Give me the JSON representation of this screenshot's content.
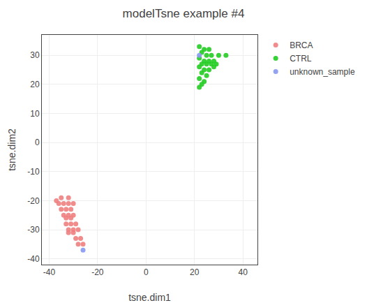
{
  "chart_data": {
    "type": "scatter",
    "title": "modelTsne example #4",
    "xlabel": "tsne.dim1",
    "ylabel": "tsne.dim2",
    "xlim": [
      -43,
      46
    ],
    "ylim": [
      -42,
      37
    ],
    "xticks": [
      -40,
      -20,
      0,
      20,
      40
    ],
    "yticks": [
      -40,
      -30,
      -20,
      -10,
      0,
      10,
      20,
      30
    ],
    "grid": true,
    "legend": "upper right",
    "marker": "circle",
    "series": [
      {
        "name": "BRCA",
        "color": "#f08080",
        "x": [
          -37,
          -35,
          -32,
          -36,
          -34,
          -32,
          -30,
          -35,
          -33,
          -31,
          -34,
          -32,
          -30,
          -33,
          -31,
          -33,
          -31,
          -29,
          -32,
          -30,
          -32,
          -30,
          -28,
          -29,
          -27,
          -28,
          -26
        ],
        "values": [
          -20,
          -19,
          -19,
          -21,
          -21,
          -21,
          -21,
          -23,
          -23,
          -23,
          -25,
          -25,
          -25,
          -26,
          -26,
          -28,
          -28,
          -28,
          -30,
          -30,
          -31,
          -31,
          -30,
          -33,
          -33,
          -35,
          -35
        ]
      },
      {
        "name": "CTRL",
        "color": "#22cc22",
        "x": [
          22,
          24,
          26,
          23,
          25,
          27,
          30,
          33,
          22,
          24,
          26,
          28,
          23,
          25,
          27,
          29,
          22,
          24,
          26,
          28,
          23,
          25,
          22,
          24,
          23,
          22
        ],
        "values": [
          33,
          32,
          32,
          31,
          30,
          30,
          30,
          30,
          29,
          28,
          28,
          28,
          27,
          27,
          27,
          27,
          26,
          25,
          25,
          26,
          24,
          23,
          22,
          21,
          20,
          19
        ]
      },
      {
        "name": "unknown_sample",
        "color": "#8899ee",
        "x": [
          -26,
          22
        ],
        "values": [
          -37,
          30
        ]
      }
    ]
  }
}
